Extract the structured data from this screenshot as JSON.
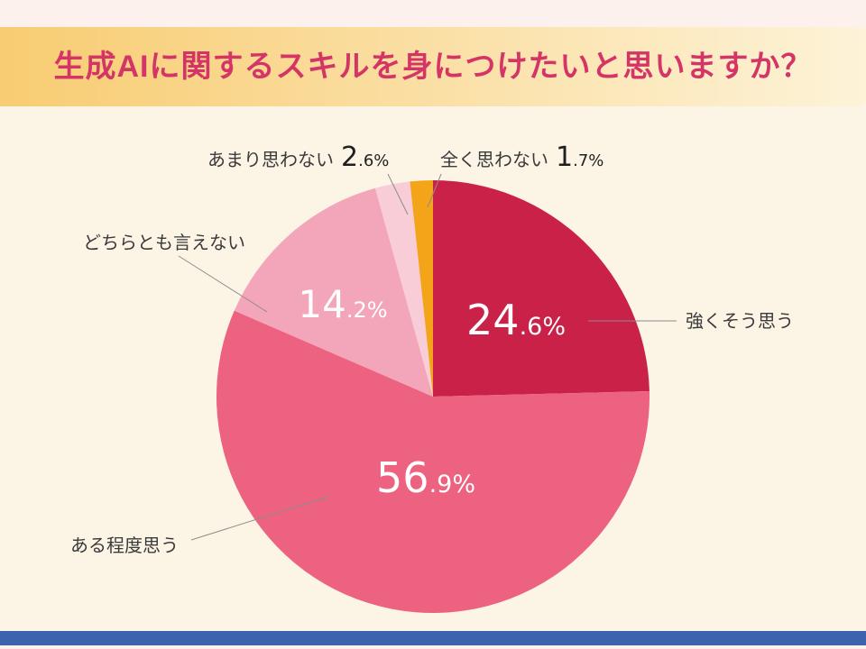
{
  "page": {
    "top_strip_color": "#fdf1ee",
    "background_color": "#fcf5e6",
    "banner_gradient_start": "#f8cc72",
    "banner_gradient_end": "#fdf3d8",
    "title_color": "#d43566",
    "footer_bar_color": "#3d63ae",
    "label_text_color": "#3a3a3a",
    "outside_number_color": "#1f1f1f",
    "leader_line_color": "#8c8c8c"
  },
  "chart_data": {
    "type": "pie",
    "title": "生成AIに関するスキルを身につけたいと思いますか？",
    "unit": "%",
    "start_angle_deg": 0,
    "direction": "clockwise",
    "total": 100,
    "legend_position": "callout-labels",
    "slices": [
      {
        "label": "強くそう思う",
        "value": 24.6,
        "color": "#ca2148",
        "value_label_color": "#ffffff",
        "label_placement": "callout-right"
      },
      {
        "label": "ある程度思う",
        "value": 56.9,
        "color": "#ec6280",
        "value_label_color": "#ffffff",
        "label_placement": "callout-bottom-left"
      },
      {
        "label": "どちらとも言えない",
        "value": 14.2,
        "color": "#f3a6b9",
        "value_label_color": "#ffffff",
        "label_placement": "callout-left"
      },
      {
        "label": "あまり思わない",
        "value": 2.6,
        "color": "#f9cdd8",
        "value_label_color": "#1f1f1f",
        "label_placement": "outside-top"
      },
      {
        "label": "全く思わない",
        "value": 1.7,
        "color": "#f4a418",
        "value_label_color": "#1f1f1f",
        "label_placement": "outside-top"
      }
    ]
  }
}
